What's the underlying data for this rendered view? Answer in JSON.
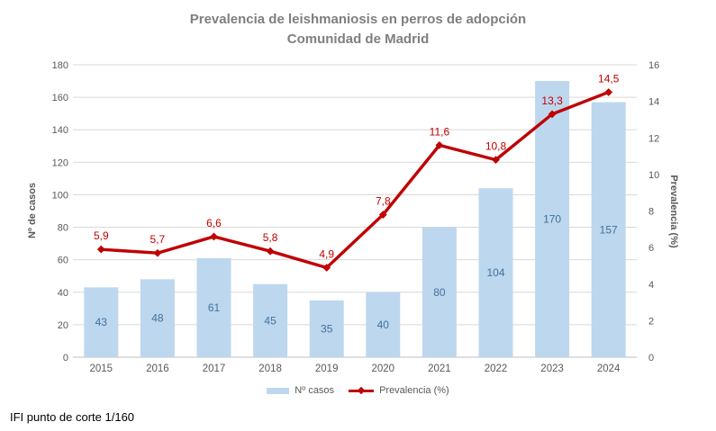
{
  "title": {
    "line1": "Prevalencia de leishmaniosis en perros de adopción",
    "line2": "Comunidad de Madrid"
  },
  "footer": {
    "text": "IFI punto de corte 1/160"
  },
  "legend": {
    "items": [
      {
        "label": "Nº casos",
        "marker": "bar-swatch-icon"
      },
      {
        "label": "Prevalencia (%)",
        "marker": "line-diamond-icon"
      }
    ]
  },
  "colors": {
    "bar_fill": "#BDD7EE",
    "bar_label": "#41719C",
    "line": "#C00000",
    "line_label": "#C00000",
    "title_text": "#7F7F7F",
    "axis_text": "#595959",
    "gridline": "#D9D9D9",
    "axis_line": "#BFBFBF",
    "footer_text": "#000000",
    "background": "#FFFFFF"
  },
  "chart_data": {
    "type": "bar",
    "subtype": "combo-bar-line-dual-axis",
    "title": "Prevalencia de leishmaniosis en perros de adopción Comunidad de Madrid",
    "categories": [
      "2015",
      "2016",
      "2017",
      "2018",
      "2019",
      "2020",
      "2021",
      "2022",
      "2023",
      "2024"
    ],
    "series": [
      {
        "name": "Nº casos",
        "type": "bar",
        "axis": "left",
        "values": [
          43,
          48,
          61,
          45,
          35,
          40,
          80,
          104,
          170,
          157
        ],
        "value_labels": [
          "43",
          "48",
          "61",
          "45",
          "35",
          "40",
          "80",
          "104",
          "170",
          "157"
        ]
      },
      {
        "name": "Prevalencia (%)",
        "type": "line",
        "axis": "right",
        "values": [
          5.9,
          5.7,
          6.6,
          5.8,
          4.9,
          7.8,
          11.6,
          10.8,
          13.3,
          14.5
        ],
        "value_labels": [
          "5,9",
          "5,7",
          "6,6",
          "5,8",
          "4,9",
          "7,8",
          "11,6",
          "10,8",
          "13,3",
          "14,5"
        ]
      }
    ],
    "left_axis": {
      "title": "Nº de casos",
      "min": 0,
      "max": 180,
      "step": 20,
      "tick_labels": [
        "0",
        "20",
        "40",
        "60",
        "80",
        "100",
        "120",
        "140",
        "160",
        "180"
      ]
    },
    "right_axis": {
      "title": "Prevalencia (%)",
      "min": 0,
      "max": 16,
      "step": 2,
      "tick_labels": [
        "0",
        "2",
        "4",
        "6",
        "8",
        "10",
        "12",
        "14",
        "16"
      ]
    },
    "grid": true,
    "legend_position": "bottom"
  }
}
